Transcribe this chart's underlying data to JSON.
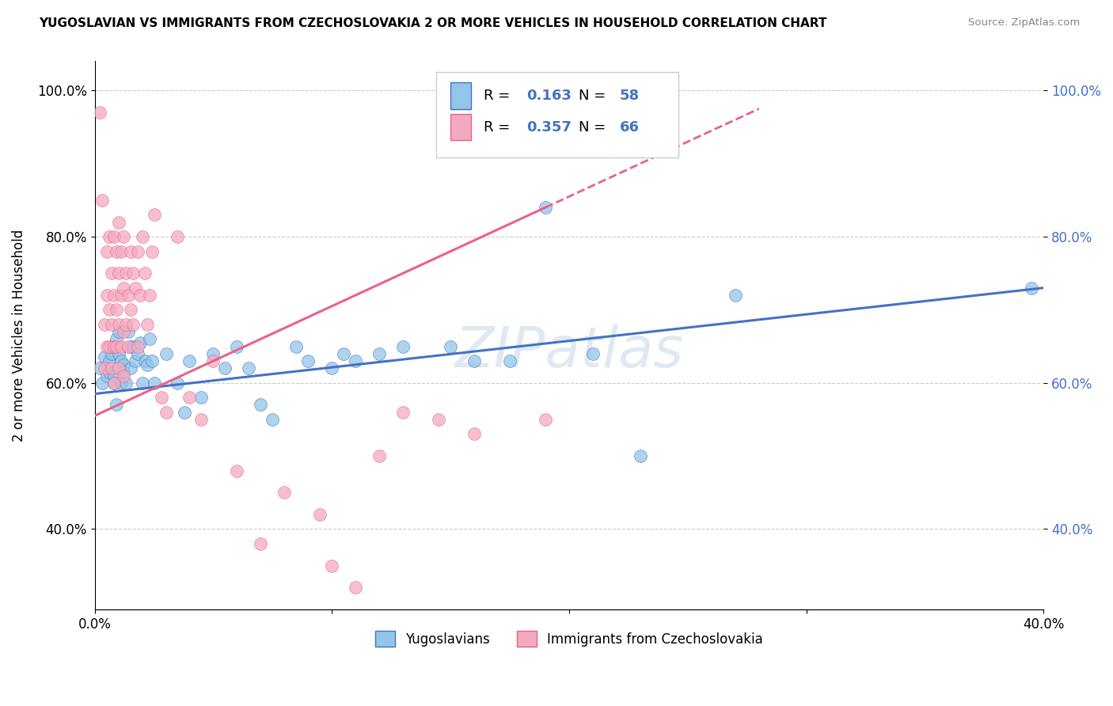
{
  "title": "YUGOSLAVIAN VS IMMIGRANTS FROM CZECHOSLOVAKIA 2 OR MORE VEHICLES IN HOUSEHOLD CORRELATION CHART",
  "source": "Source: ZipAtlas.com",
  "ylabel": "2 or more Vehicles in Household",
  "legend_label1": "Yugoslavians",
  "legend_label2": "Immigrants from Czechoslovakia",
  "R1": 0.163,
  "N1": 58,
  "R2": 0.357,
  "N2": 66,
  "xmin": 0.0,
  "xmax": 0.4,
  "ymin": 0.29,
  "ymax": 1.04,
  "color_blue": "#92C5E8",
  "color_pink": "#F4AABE",
  "line_blue": "#4472C4",
  "line_pink": "#E8628A",
  "blue_points": [
    [
      0.002,
      0.62
    ],
    [
      0.003,
      0.6
    ],
    [
      0.004,
      0.635
    ],
    [
      0.005,
      0.61
    ],
    [
      0.006,
      0.615
    ],
    [
      0.006,
      0.63
    ],
    [
      0.007,
      0.64
    ],
    [
      0.007,
      0.65
    ],
    [
      0.008,
      0.61
    ],
    [
      0.008,
      0.6
    ],
    [
      0.009,
      0.57
    ],
    [
      0.009,
      0.66
    ],
    [
      0.01,
      0.64
    ],
    [
      0.01,
      0.67
    ],
    [
      0.011,
      0.63
    ],
    [
      0.011,
      0.6
    ],
    [
      0.012,
      0.625
    ],
    [
      0.012,
      0.615
    ],
    [
      0.013,
      0.6
    ],
    [
      0.014,
      0.67
    ],
    [
      0.015,
      0.65
    ],
    [
      0.015,
      0.62
    ],
    [
      0.016,
      0.65
    ],
    [
      0.017,
      0.63
    ],
    [
      0.018,
      0.64
    ],
    [
      0.019,
      0.655
    ],
    [
      0.02,
      0.6
    ],
    [
      0.021,
      0.63
    ],
    [
      0.022,
      0.625
    ],
    [
      0.023,
      0.66
    ],
    [
      0.024,
      0.63
    ],
    [
      0.025,
      0.6
    ],
    [
      0.03,
      0.64
    ],
    [
      0.035,
      0.6
    ],
    [
      0.038,
      0.56
    ],
    [
      0.04,
      0.63
    ],
    [
      0.045,
      0.58
    ],
    [
      0.05,
      0.64
    ],
    [
      0.055,
      0.62
    ],
    [
      0.06,
      0.65
    ],
    [
      0.065,
      0.62
    ],
    [
      0.07,
      0.57
    ],
    [
      0.075,
      0.55
    ],
    [
      0.085,
      0.65
    ],
    [
      0.09,
      0.63
    ],
    [
      0.1,
      0.62
    ],
    [
      0.105,
      0.64
    ],
    [
      0.11,
      0.63
    ],
    [
      0.12,
      0.64
    ],
    [
      0.13,
      0.65
    ],
    [
      0.15,
      0.65
    ],
    [
      0.16,
      0.63
    ],
    [
      0.175,
      0.63
    ],
    [
      0.19,
      0.84
    ],
    [
      0.21,
      0.64
    ],
    [
      0.23,
      0.5
    ],
    [
      0.27,
      0.72
    ],
    [
      0.395,
      0.73
    ]
  ],
  "pink_points": [
    [
      0.002,
      0.97
    ],
    [
      0.003,
      0.85
    ],
    [
      0.004,
      0.62
    ],
    [
      0.004,
      0.68
    ],
    [
      0.005,
      0.78
    ],
    [
      0.005,
      0.65
    ],
    [
      0.005,
      0.72
    ],
    [
      0.006,
      0.8
    ],
    [
      0.006,
      0.7
    ],
    [
      0.006,
      0.65
    ],
    [
      0.007,
      0.75
    ],
    [
      0.007,
      0.68
    ],
    [
      0.007,
      0.62
    ],
    [
      0.008,
      0.8
    ],
    [
      0.008,
      0.72
    ],
    [
      0.008,
      0.65
    ],
    [
      0.008,
      0.6
    ],
    [
      0.009,
      0.78
    ],
    [
      0.009,
      0.7
    ],
    [
      0.009,
      0.65
    ],
    [
      0.01,
      0.82
    ],
    [
      0.01,
      0.75
    ],
    [
      0.01,
      0.68
    ],
    [
      0.01,
      0.62
    ],
    [
      0.011,
      0.78
    ],
    [
      0.011,
      0.72
    ],
    [
      0.011,
      0.65
    ],
    [
      0.012,
      0.8
    ],
    [
      0.012,
      0.73
    ],
    [
      0.012,
      0.67
    ],
    [
      0.012,
      0.61
    ],
    [
      0.013,
      0.75
    ],
    [
      0.013,
      0.68
    ],
    [
      0.014,
      0.72
    ],
    [
      0.014,
      0.65
    ],
    [
      0.015,
      0.78
    ],
    [
      0.015,
      0.7
    ],
    [
      0.016,
      0.75
    ],
    [
      0.016,
      0.68
    ],
    [
      0.017,
      0.73
    ],
    [
      0.018,
      0.78
    ],
    [
      0.018,
      0.65
    ],
    [
      0.019,
      0.72
    ],
    [
      0.02,
      0.8
    ],
    [
      0.021,
      0.75
    ],
    [
      0.022,
      0.68
    ],
    [
      0.023,
      0.72
    ],
    [
      0.024,
      0.78
    ],
    [
      0.025,
      0.83
    ],
    [
      0.028,
      0.58
    ],
    [
      0.03,
      0.56
    ],
    [
      0.035,
      0.8
    ],
    [
      0.04,
      0.58
    ],
    [
      0.045,
      0.55
    ],
    [
      0.05,
      0.63
    ],
    [
      0.06,
      0.48
    ],
    [
      0.07,
      0.38
    ],
    [
      0.08,
      0.45
    ],
    [
      0.095,
      0.42
    ],
    [
      0.1,
      0.35
    ],
    [
      0.11,
      0.32
    ],
    [
      0.12,
      0.5
    ],
    [
      0.13,
      0.56
    ],
    [
      0.145,
      0.55
    ],
    [
      0.16,
      0.53
    ],
    [
      0.19,
      0.55
    ]
  ],
  "watermark": "ZIPatlas",
  "background_color": "#FFFFFF",
  "grid_color": "#CCCCCC"
}
